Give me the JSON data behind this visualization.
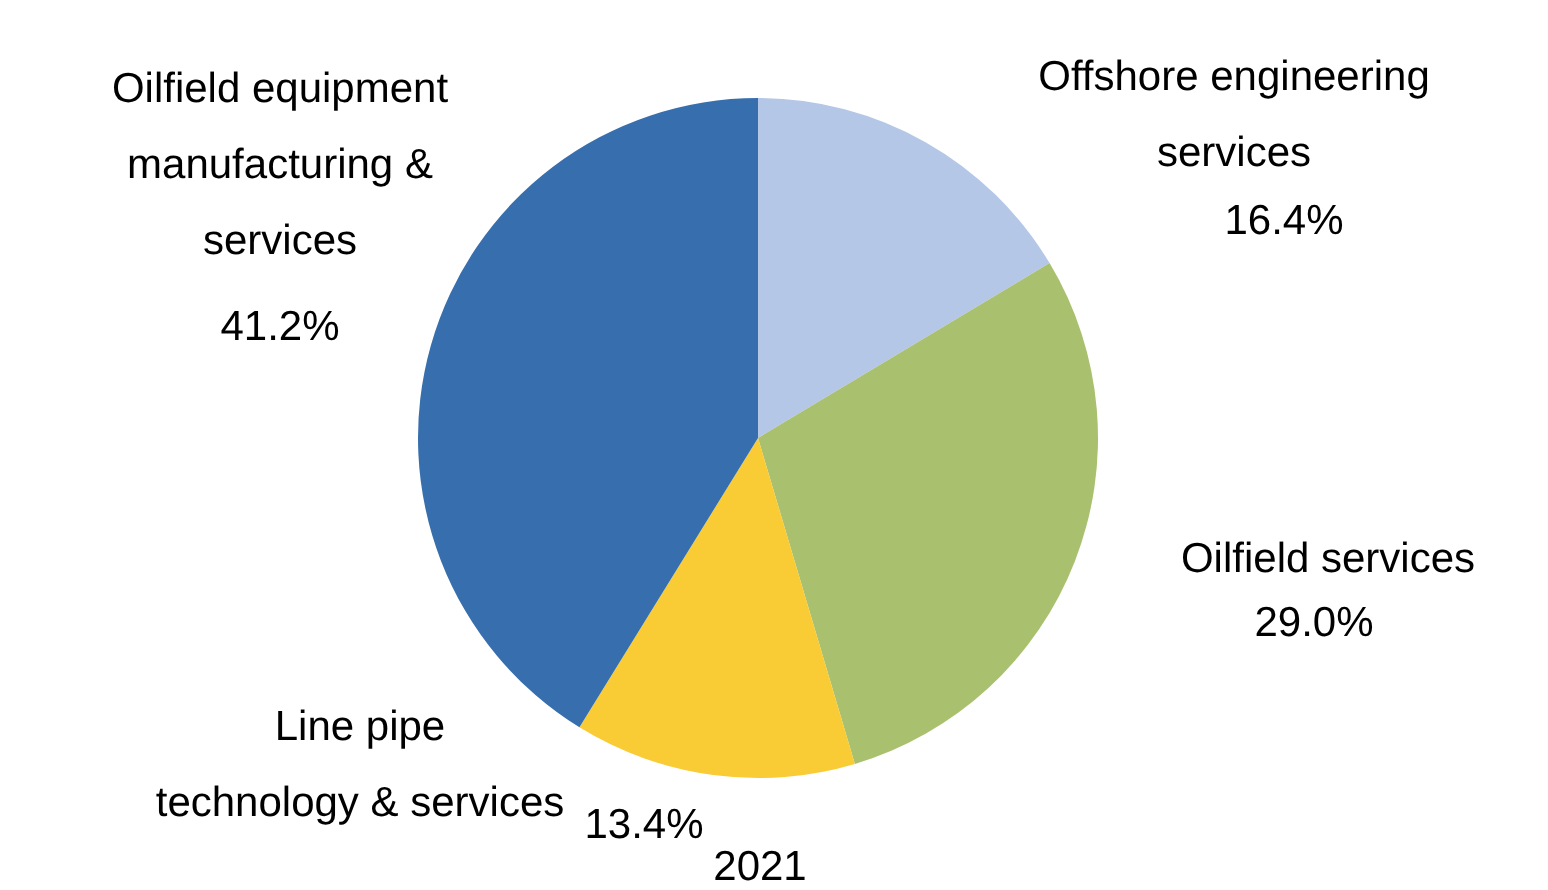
{
  "chart_data": {
    "type": "pie",
    "title": "2021",
    "categories": [
      "Offshore engineering services",
      "Oilfield services",
      "Line pipe technology & services",
      "Oilfield equipment manufacturing & services"
    ],
    "values": [
      16.4,
      29.0,
      13.4,
      41.2
    ],
    "colors": [
      "#b4c7e7",
      "#a9c06f",
      "#f9cb35",
      "#376fae"
    ],
    "value_labels": [
      "16.4%",
      "29.0%",
      "13.4%",
      "41.2%"
    ]
  }
}
